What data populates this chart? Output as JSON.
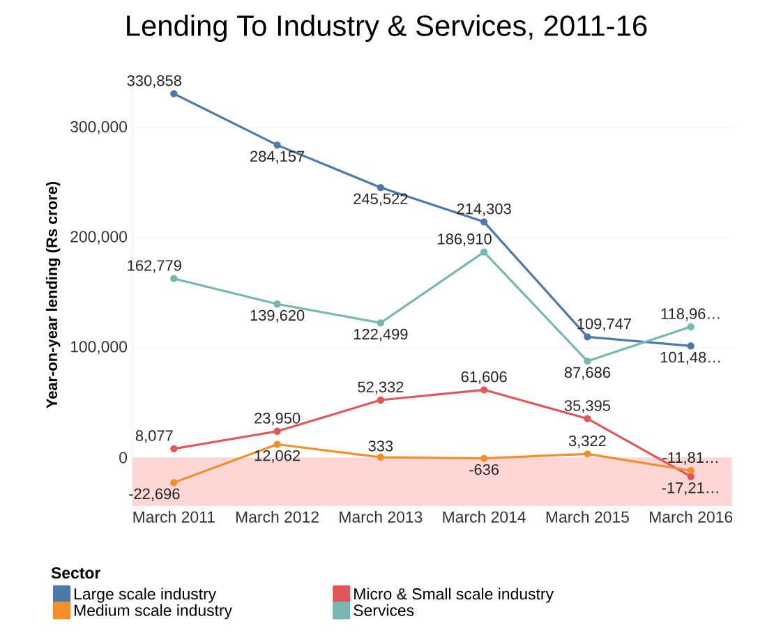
{
  "chart_data": {
    "type": "line",
    "title": "Lending To Industry & Services, 2011-16",
    "ylabel": "Year-on-year lending (Rs crore)",
    "legend_title": "Sector",
    "categories": [
      "March 2011",
      "March 2012",
      "March 2013",
      "March 2014",
      "March 2015",
      "March 2016"
    ],
    "series": [
      {
        "name": "Large scale industry",
        "color": "#4e79a7",
        "values": [
          330858,
          284157,
          245522,
          214303,
          109747,
          101480
        ],
        "value_labels": [
          "330,858",
          "284,157",
          "245,522",
          "214,303",
          "109,747",
          "101,48…"
        ]
      },
      {
        "name": "Micro & Small scale industry",
        "color": "#e15759",
        "values": [
          8077,
          23950,
          52332,
          61606,
          35395,
          -17210
        ],
        "value_labels": [
          "8,077",
          "23,950",
          "52,332",
          "61,606",
          "35,395",
          "-17,21…"
        ]
      },
      {
        "name": "Medium scale industry",
        "color": "#f28e2b",
        "values": [
          -22696,
          12062,
          333,
          -636,
          3322,
          -11810
        ],
        "value_labels": [
          "-22,696",
          "12,062",
          "333",
          "-636",
          "3,322",
          "-11,81…"
        ]
      },
      {
        "name": "Services",
        "color": "#76b7b2",
        "values": [
          162779,
          139620,
          122499,
          186910,
          87686,
          118960
        ],
        "value_labels": [
          "162,779",
          "139,620",
          "122,499",
          "186,910",
          "87,686",
          "118,96…"
        ]
      }
    ],
    "ylim": [
      -44000,
      340000
    ],
    "yticks": [
      0,
      {
        "value": 100000,
        "label": "100,000"
      },
      {
        "value": 200000,
        "label": "200,000"
      },
      {
        "value": 300000,
        "label": "300,000"
      }
    ],
    "bands": [
      {
        "axis": "y",
        "from": -44000,
        "to": 0,
        "color": "#fdd6d6"
      }
    ],
    "grid": "y",
    "legend": "bottom",
    "marker": "circle",
    "line_style": "solid"
  }
}
